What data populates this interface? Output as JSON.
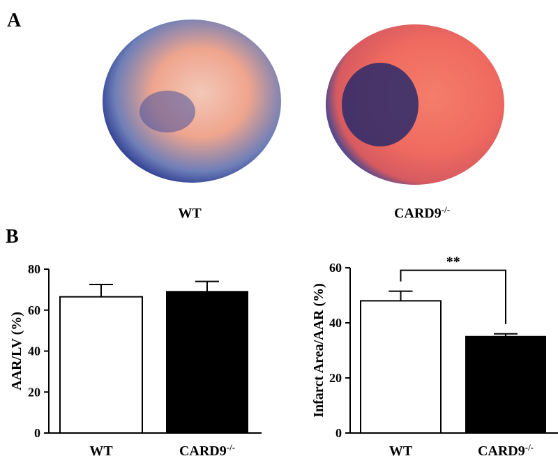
{
  "panel_labels": [
    "A",
    "B"
  ],
  "photo_labels": [
    "WT",
    "CARD9-/-"
  ],
  "chart_data": [
    {
      "type": "bar",
      "y_label": "AAR/LV (%)",
      "categories": [
        "WT",
        "CARD9-/-"
      ],
      "values": [
        66.5,
        69
      ],
      "errors": [
        6,
        5
      ],
      "colors": [
        "#ffffff",
        "#000000"
      ],
      "ylim": [
        0,
        80
      ],
      "yticks": [
        0,
        20,
        40,
        60,
        80
      ]
    },
    {
      "type": "bar",
      "y_label": "Infarct Area/AAR (%)",
      "categories": [
        "WT",
        "CARD9-/-"
      ],
      "values": [
        48,
        35
      ],
      "errors": [
        3.5,
        1
      ],
      "colors": [
        "#ffffff",
        "#000000"
      ],
      "ylim": [
        0,
        60
      ],
      "yticks": [
        0,
        20,
        40,
        60
      ],
      "annotation": "**"
    }
  ]
}
